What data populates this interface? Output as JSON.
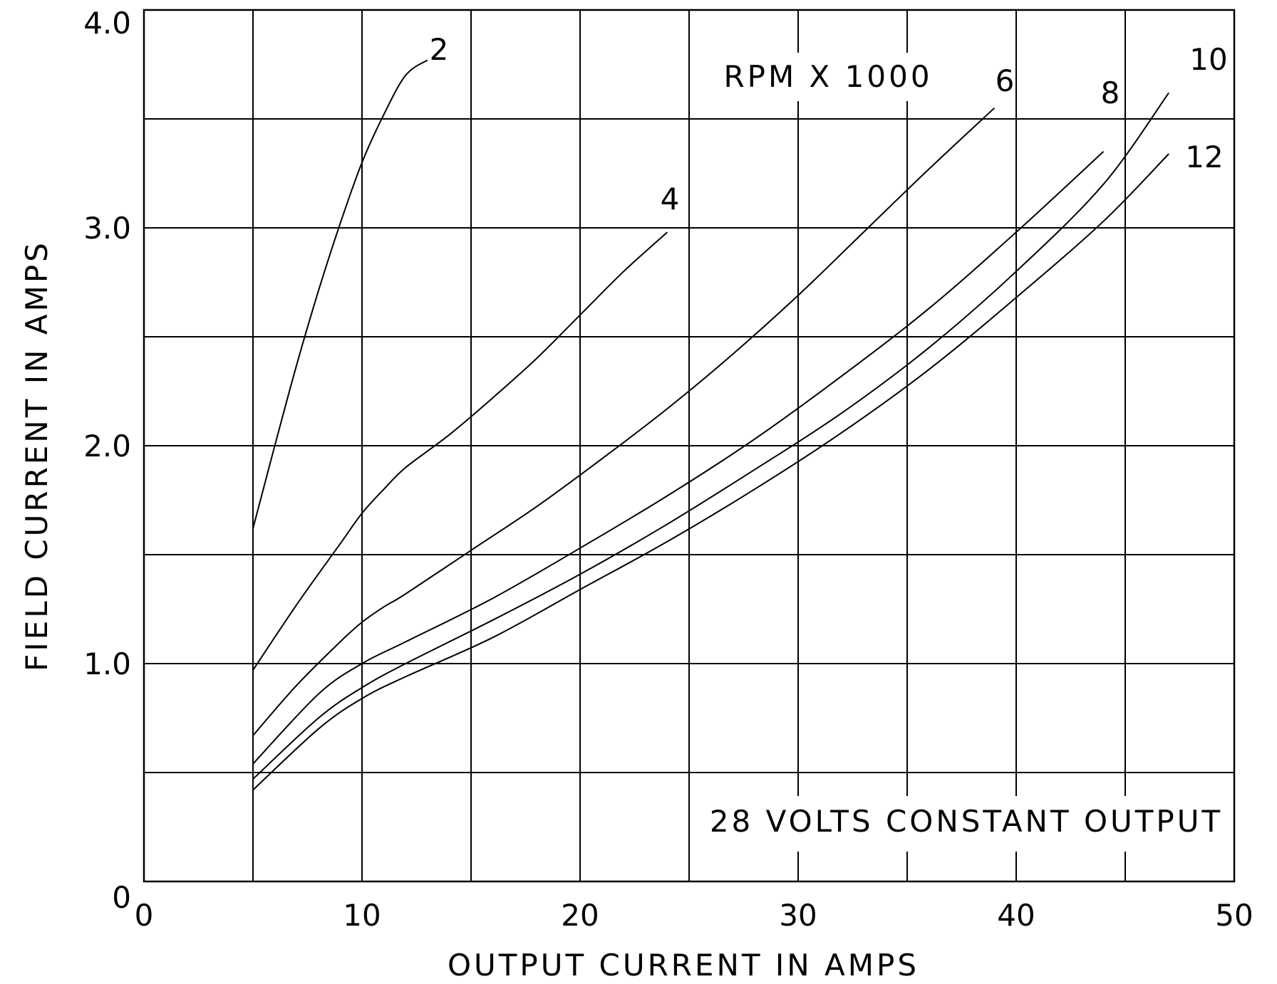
{
  "chart_data": {
    "type": "line",
    "title": "",
    "xlabel": "OUTPUT CURRENT IN AMPS",
    "ylabel": "FIELD CURRENT IN AMPS",
    "xlim": [
      0,
      50
    ],
    "ylim": [
      0,
      4.0
    ],
    "x_ticks": [
      0,
      10,
      20,
      30,
      40,
      50
    ],
    "x_tick_labels": [
      "0",
      "10",
      "20",
      "30",
      "40",
      "50"
    ],
    "y_ticks": [
      0,
      1.0,
      2.0,
      3.0,
      4.0
    ],
    "y_tick_labels": [
      "0",
      "1.0",
      "2.0",
      "3.0",
      "4.0"
    ],
    "x_grid_step": 5,
    "y_grid_step": 0.5,
    "grid": true,
    "annotations": [
      "RPM X 1000",
      "28 VOLTS CONSTANT OUTPUT"
    ],
    "series": [
      {
        "name": "2",
        "x": [
          5,
          6,
          7,
          8,
          9,
          10,
          11,
          12,
          13
        ],
        "y": [
          1.62,
          2.0,
          2.37,
          2.71,
          3.02,
          3.3,
          3.52,
          3.7,
          3.77
        ]
      },
      {
        "name": "4",
        "x": [
          5,
          7,
          9,
          10,
          11,
          12,
          14,
          16,
          18,
          20,
          22,
          24
        ],
        "y": [
          0.97,
          1.27,
          1.55,
          1.69,
          1.8,
          1.9,
          2.05,
          2.22,
          2.4,
          2.6,
          2.8,
          2.98
        ]
      },
      {
        "name": "6",
        "x": [
          5,
          7,
          9,
          10,
          11,
          12,
          15,
          18,
          21,
          24,
          27,
          30,
          33,
          36,
          39
        ],
        "y": [
          0.67,
          0.9,
          1.1,
          1.19,
          1.26,
          1.32,
          1.52,
          1.72,
          1.94,
          2.17,
          2.42,
          2.69,
          2.98,
          3.27,
          3.55
        ]
      },
      {
        "name": "8",
        "x": [
          5,
          8,
          10,
          12,
          16,
          20,
          24,
          28,
          32,
          36,
          40,
          44
        ],
        "y": [
          0.54,
          0.86,
          1.0,
          1.1,
          1.3,
          1.53,
          1.77,
          2.03,
          2.32,
          2.63,
          2.98,
          3.35
        ]
      },
      {
        "name": "10",
        "x": [
          5,
          8,
          10,
          12,
          16,
          20,
          24,
          28,
          32,
          36,
          40,
          44,
          47
        ],
        "y": [
          0.47,
          0.75,
          0.89,
          1.0,
          1.2,
          1.41,
          1.64,
          1.89,
          2.15,
          2.45,
          2.8,
          3.2,
          3.62
        ]
      },
      {
        "name": "12",
        "x": [
          5,
          8,
          10,
          12,
          16,
          20,
          24,
          28,
          32,
          36,
          40,
          44,
          47
        ],
        "y": [
          0.42,
          0.7,
          0.84,
          0.94,
          1.12,
          1.34,
          1.56,
          1.8,
          2.06,
          2.35,
          2.68,
          3.03,
          3.34
        ]
      }
    ]
  }
}
